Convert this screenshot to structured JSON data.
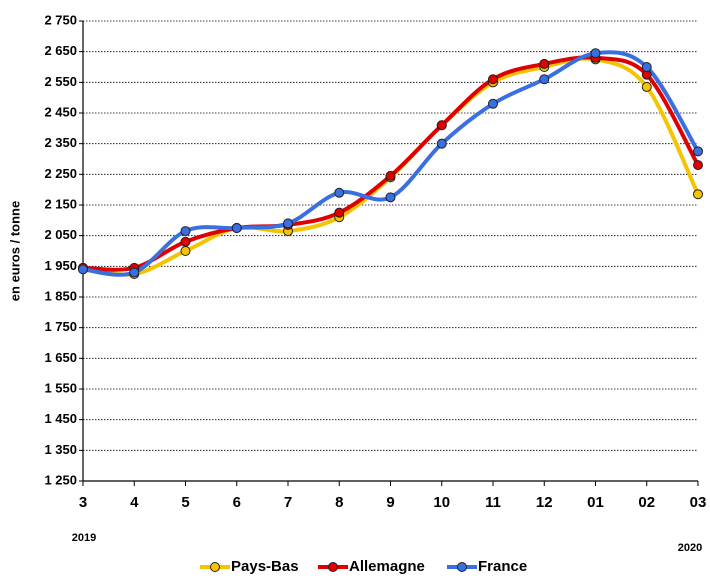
{
  "chart_data": {
    "type": "line",
    "y_label": "en euros / tonne",
    "categories": [
      "3",
      "4",
      "5",
      "6",
      "7",
      "8",
      "9",
      "10",
      "11",
      "12",
      "01",
      "02",
      "03"
    ],
    "annotations": [
      "2019",
      "2020"
    ],
    "series": [
      {
        "name": "Pays-Bas",
        "color": "#f5c400",
        "values": [
          1945,
          1925,
          2000,
          2075,
          2065,
          2110,
          2240,
          2410,
          2550,
          2600,
          2625,
          2535,
          2185
        ]
      },
      {
        "name": "Allemagne",
        "color": "#e00000",
        "values": [
          1945,
          1945,
          2030,
          2075,
          2085,
          2125,
          2245,
          2410,
          2560,
          2610,
          2630,
          2575,
          2280
        ]
      },
      {
        "name": "France",
        "color": "#3a6fe0",
        "values": [
          1940,
          1930,
          2065,
          2075,
          2090,
          2190,
          2175,
          2350,
          2480,
          2560,
          2645,
          2600,
          2325
        ]
      }
    ],
    "ylim": [
      1250,
      2750
    ],
    "yticks": [
      {
        "value": 1250,
        "label": "1 250"
      },
      {
        "value": 1350,
        "label": "1 350"
      },
      {
        "value": 1450,
        "label": "1 450"
      },
      {
        "value": 1550,
        "label": "1 550"
      },
      {
        "value": 1650,
        "label": "1 650"
      },
      {
        "value": 1750,
        "label": "1 750"
      },
      {
        "value": 1850,
        "label": "1 850"
      },
      {
        "value": 1950,
        "label": "1 950"
      },
      {
        "value": 2050,
        "label": "2 050"
      },
      {
        "value": 2150,
        "label": "2 150"
      },
      {
        "value": 2250,
        "label": "2 250"
      },
      {
        "value": 2350,
        "label": "2 350"
      },
      {
        "value": 2450,
        "label": "2 450"
      },
      {
        "value": 2550,
        "label": "2 550"
      },
      {
        "value": 2650,
        "label": "2 650"
      },
      {
        "value": 2750,
        "label": "2 750"
      }
    ],
    "grid": true,
    "legend": "bottom"
  }
}
